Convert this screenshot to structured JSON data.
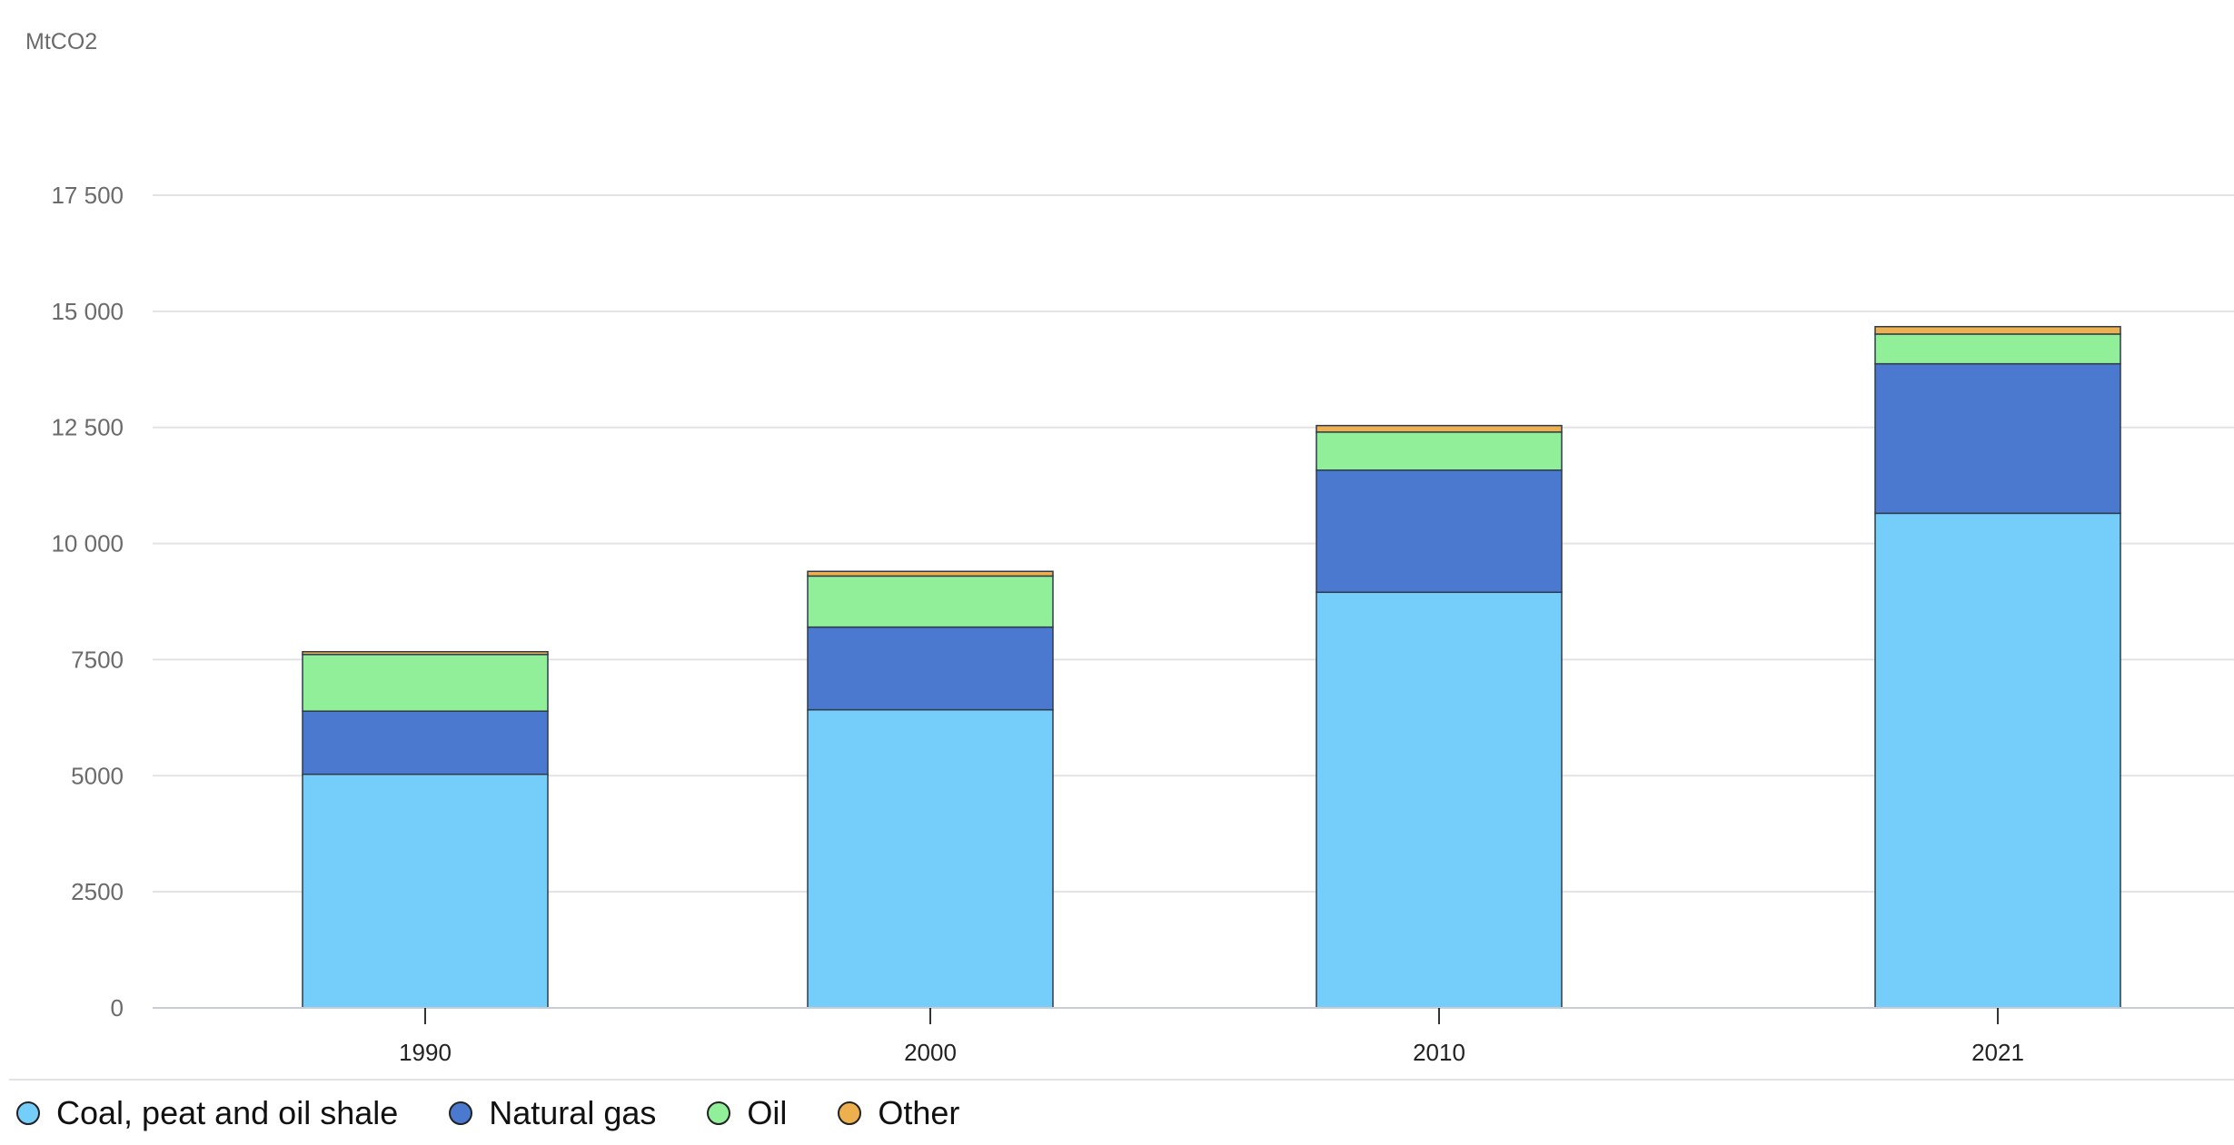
{
  "chart_data": {
    "type": "bar",
    "stacked": true,
    "unit_label": "MtCO2",
    "categories": [
      "1990",
      "2000",
      "2010",
      "2021"
    ],
    "series": [
      {
        "name": "Coal, peat and oil shale",
        "color": "#75cefa",
        "values": [
          5030,
          6420,
          8950,
          10650
        ]
      },
      {
        "name": "Natural gas",
        "color": "#4a79cf",
        "values": [
          1360,
          1780,
          2630,
          3220
        ]
      },
      {
        "name": "Oil",
        "color": "#90ef98",
        "values": [
          1220,
          1100,
          820,
          640
        ]
      },
      {
        "name": "Other",
        "color": "#eeb04f",
        "values": [
          60,
          100,
          140,
          160
        ]
      }
    ],
    "y_ticks": [
      {
        "value": 0,
        "label": "0"
      },
      {
        "value": 2500,
        "label": "2500"
      },
      {
        "value": 5000,
        "label": "5000"
      },
      {
        "value": 7500,
        "label": "7500"
      },
      {
        "value": 10000,
        "label": "10 000"
      },
      {
        "value": 12500,
        "label": "12 500"
      },
      {
        "value": 15000,
        "label": "15 000"
      },
      {
        "value": 17500,
        "label": "17 500"
      }
    ],
    "ylim": [
      0,
      17500
    ],
    "grid": true,
    "legend_position": "bottom-left"
  }
}
